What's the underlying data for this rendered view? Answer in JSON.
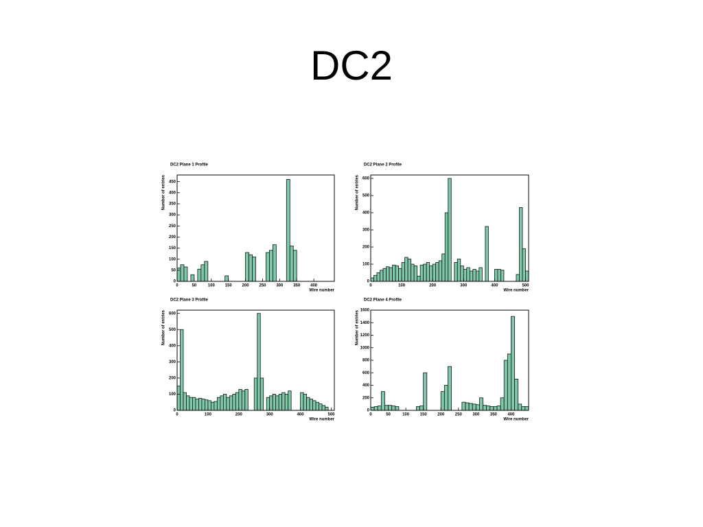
{
  "title": "DC2",
  "chart_data": [
    {
      "type": "histogram",
      "title": "DC2 Plane 1 Profile",
      "x_label": "Wire number",
      "y_label": "Number of entries",
      "color": "#7fc8a9",
      "bins": [
        0,
        10,
        20,
        30,
        40,
        50,
        60,
        70,
        80,
        90,
        100,
        110,
        120,
        130,
        140,
        150,
        160,
        170,
        180,
        190,
        200,
        210,
        220,
        230,
        240,
        250,
        260,
        270,
        280,
        290,
        300,
        310,
        320,
        330,
        340,
        350,
        360,
        370,
        380,
        390,
        400,
        410,
        420,
        430,
        440,
        450,
        460
      ],
      "values": [
        60,
        75,
        65,
        0,
        30,
        0,
        55,
        75,
        90,
        0,
        0,
        0,
        0,
        0,
        25,
        0,
        0,
        0,
        0,
        0,
        130,
        120,
        110,
        0,
        0,
        0,
        130,
        140,
        165,
        0,
        0,
        0,
        460,
        160,
        140,
        0,
        0,
        0,
        0,
        0,
        0,
        0,
        0,
        0,
        0,
        0
      ],
      "xlim": [
        0,
        460
      ],
      "xticks": [
        0,
        50,
        100,
        150,
        200,
        250,
        300,
        350,
        400
      ],
      "ylim": [
        0,
        480
      ],
      "yticks": [
        0,
        50,
        100,
        150,
        200,
        250,
        300,
        350,
        400,
        450
      ]
    },
    {
      "type": "histogram",
      "title": "DC2 Plane 2 Profile",
      "x_label": "Wire number",
      "y_label": "Number of entries",
      "color": "#7fc8a9",
      "bins": [
        0,
        10,
        20,
        30,
        40,
        50,
        60,
        70,
        80,
        90,
        100,
        110,
        120,
        130,
        140,
        150,
        160,
        170,
        180,
        190,
        200,
        210,
        220,
        230,
        240,
        250,
        260,
        270,
        280,
        290,
        300,
        310,
        320,
        330,
        340,
        350,
        360,
        370,
        380,
        390,
        400,
        410,
        420,
        430,
        440,
        450,
        460,
        470,
        480,
        490,
        500,
        510
      ],
      "values": [
        20,
        35,
        50,
        65,
        75,
        85,
        80,
        95,
        90,
        75,
        110,
        140,
        130,
        100,
        90,
        30,
        95,
        100,
        110,
        90,
        100,
        110,
        120,
        160,
        400,
        600,
        0,
        110,
        130,
        90,
        70,
        80,
        60,
        70,
        60,
        80,
        0,
        320,
        0,
        0,
        70,
        70,
        65,
        0,
        0,
        0,
        0,
        40,
        430,
        190,
        60
      ],
      "xlim": [
        0,
        510
      ],
      "xticks": [
        0,
        100,
        200,
        300,
        400,
        500
      ],
      "ylim": [
        0,
        620
      ],
      "yticks": [
        0,
        100,
        200,
        300,
        400,
        500,
        600
      ]
    },
    {
      "type": "histogram",
      "title": "DC2 Plane 3 Profile",
      "x_label": "Wire number",
      "y_label": "Number of entries",
      "color": "#7fc8a9",
      "bins": [
        0,
        10,
        20,
        30,
        40,
        50,
        60,
        70,
        80,
        90,
        100,
        110,
        120,
        130,
        140,
        150,
        160,
        170,
        180,
        190,
        200,
        210,
        220,
        230,
        240,
        250,
        260,
        270,
        280,
        290,
        300,
        310,
        320,
        330,
        340,
        350,
        360,
        370,
        380,
        390,
        400,
        410,
        420,
        430,
        440,
        450,
        460,
        470,
        480,
        490,
        500,
        510
      ],
      "values": [
        150,
        500,
        110,
        90,
        80,
        80,
        70,
        75,
        70,
        65,
        60,
        50,
        55,
        80,
        90,
        100,
        80,
        90,
        100,
        110,
        130,
        120,
        130,
        0,
        0,
        200,
        600,
        200,
        0,
        80,
        90,
        100,
        90,
        100,
        110,
        100,
        120,
        0,
        0,
        0,
        110,
        100,
        80,
        70,
        60,
        50,
        40,
        30,
        20,
        0,
        0
      ],
      "xlim": [
        0,
        510
      ],
      "xticks": [
        0,
        100,
        200,
        300,
        400,
        500
      ],
      "ylim": [
        0,
        620
      ],
      "yticks": [
        0,
        100,
        200,
        300,
        400,
        500,
        600
      ]
    },
    {
      "type": "histogram",
      "title": "DC2 Plane 4 Profile",
      "x_label": "Wire number",
      "y_label": "Number of entries",
      "color": "#7fc8a9",
      "bins": [
        0,
        10,
        20,
        30,
        40,
        50,
        60,
        70,
        80,
        90,
        100,
        110,
        120,
        130,
        140,
        150,
        160,
        170,
        180,
        190,
        200,
        210,
        220,
        230,
        240,
        250,
        260,
        270,
        280,
        290,
        300,
        310,
        320,
        330,
        340,
        350,
        360,
        370,
        380,
        390,
        400,
        410,
        420,
        430,
        440,
        450
      ],
      "values": [
        50,
        60,
        70,
        300,
        80,
        80,
        70,
        60,
        0,
        0,
        0,
        0,
        0,
        60,
        70,
        600,
        0,
        0,
        0,
        0,
        300,
        400,
        700,
        0,
        0,
        0,
        130,
        120,
        110,
        100,
        90,
        200,
        80,
        70,
        60,
        60,
        70,
        200,
        800,
        900,
        1500,
        500,
        100,
        60,
        60
      ],
      "xlim": [
        0,
        450
      ],
      "xticks": [
        0,
        50,
        100,
        150,
        200,
        250,
        300,
        350,
        400
      ],
      "ylim": [
        0,
        1600
      ],
      "yticks": [
        0,
        200,
        400,
        600,
        800,
        1000,
        1200,
        1400,
        1600
      ]
    }
  ]
}
